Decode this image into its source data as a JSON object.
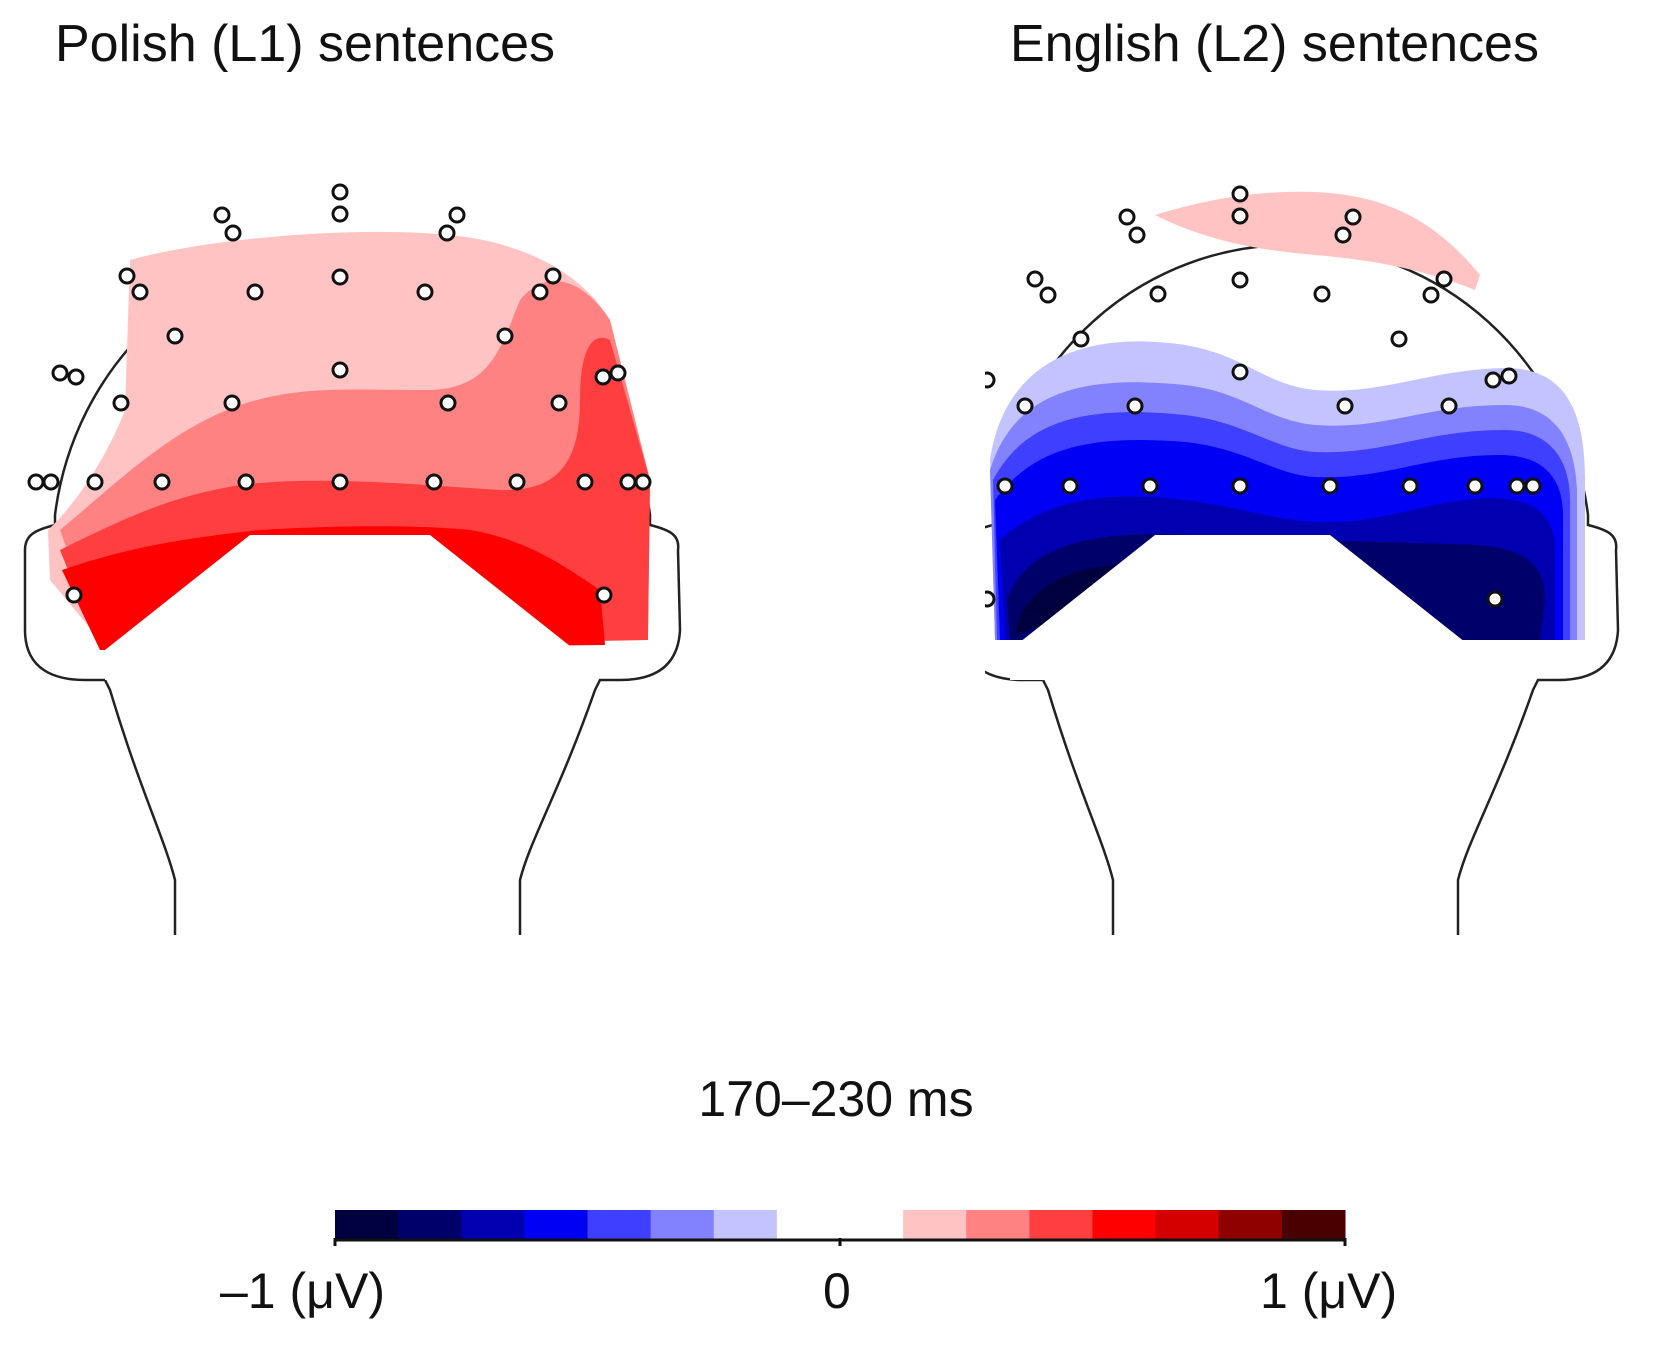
{
  "panels": [
    {
      "id": "polish",
      "title": "Polish (L1) sentences",
      "polarity": "positive"
    },
    {
      "id": "english",
      "title": "English (L2) sentences",
      "polarity": "negative"
    }
  ],
  "time_window": "170–230 ms",
  "colorbar": {
    "min_label": "–1 (μV)",
    "zero_label": "0",
    "max_label": "1 (μV)",
    "negative_colors": [
      "#00003f",
      "#00006b",
      "#0000b0",
      "#0000f5",
      "#3f3fff",
      "#8282ff",
      "#c3c3ff"
    ],
    "neutral_color": "#ffffff",
    "positive_colors": [
      "#ffc3c3",
      "#ff8282",
      "#ff3f3f",
      "#ff0000",
      "#d40000",
      "#8f0000",
      "#4a0000"
    ]
  },
  "electrode_icon": "circle-marker"
}
